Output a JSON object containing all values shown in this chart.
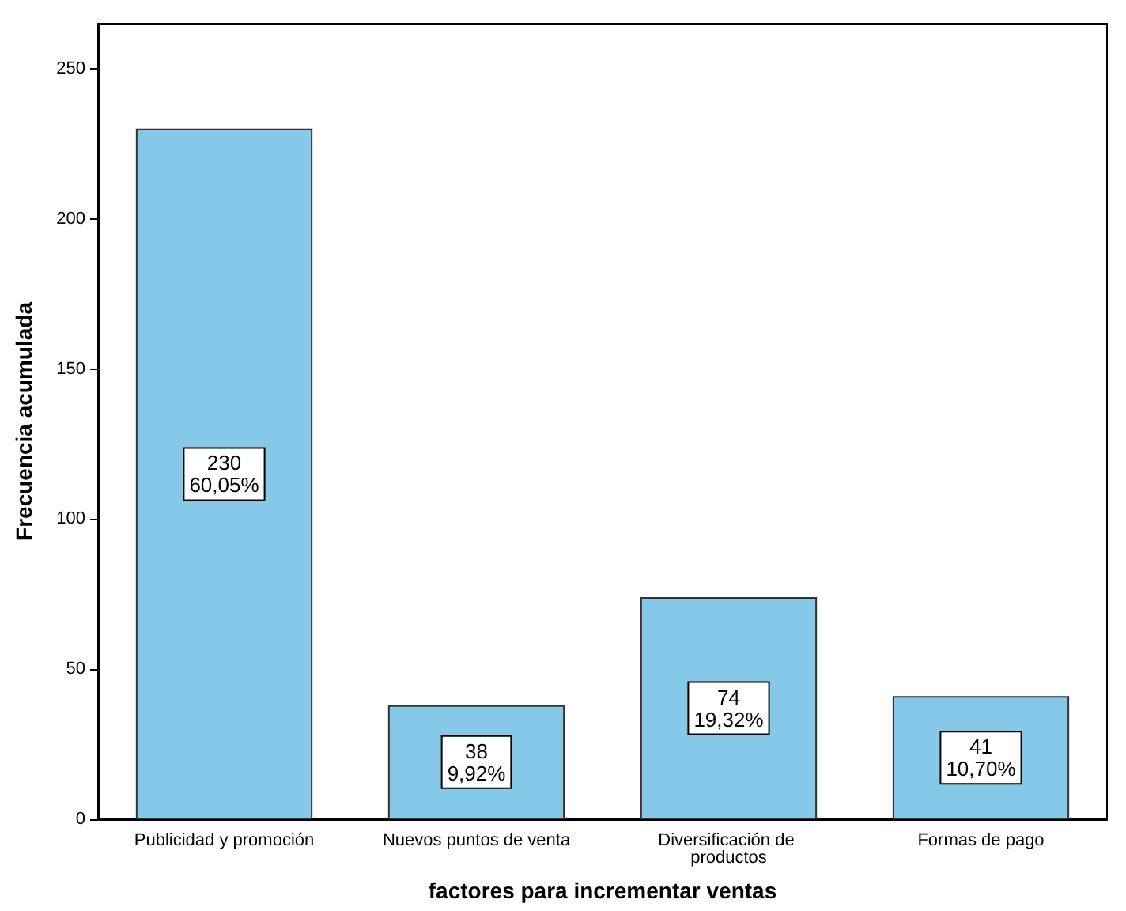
{
  "chart_data": {
    "type": "bar",
    "xlabel": "factores para incrementar ventas",
    "ylabel": "Frecuencia acumulada",
    "categories": [
      "Publicidad y promoción",
      "Nuevos puntos de venta",
      "Diversificación de productos",
      "Formas de pago"
    ],
    "values": [
      230,
      38,
      74,
      41
    ],
    "value_labels": [
      "230\n60,05%",
      "38\n9,92%",
      "74\n19,32%",
      "41\n10,70%"
    ],
    "color": "#86c8e8",
    "ylim": [
      0,
      265
    ],
    "yticks": [
      0,
      50,
      100,
      150,
      200,
      250
    ]
  }
}
